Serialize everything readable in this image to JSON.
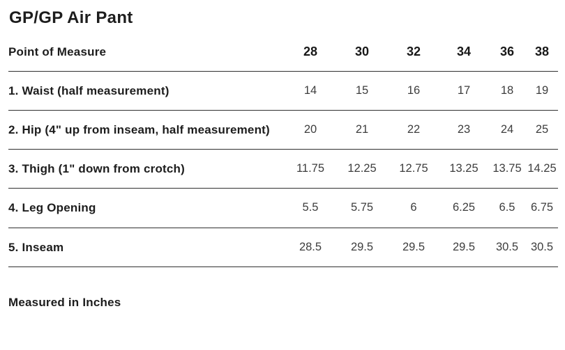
{
  "page": {
    "title": "GP/GP Air Pant",
    "footer_note": "Measured in Inches"
  },
  "table": {
    "header": {
      "label": "Point of Measure",
      "sizes": [
        "28",
        "30",
        "32",
        "34",
        "36",
        "38"
      ]
    },
    "rows": [
      {
        "label": "1. Waist (half measurement)",
        "values": [
          "14",
          "15",
          "16",
          "17",
          "18",
          "19"
        ]
      },
      {
        "label": "2. Hip (4\" up from inseam, half measurement)",
        "values": [
          "20",
          "21",
          "22",
          "23",
          "24",
          "25"
        ]
      },
      {
        "label": "3. Thigh (1\" down from crotch)",
        "values": [
          "11.75",
          "12.25",
          "12.75",
          "13.25",
          "13.75",
          "14.25"
        ]
      },
      {
        "label": "4. Leg Opening",
        "values": [
          "5.5",
          "5.75",
          "6",
          "6.25",
          "6.5",
          "6.75"
        ]
      },
      {
        "label": "5. Inseam",
        "values": [
          "28.5",
          "29.5",
          "29.5",
          "29.5",
          "30.5",
          "30.5"
        ]
      }
    ]
  },
  "chart_data": {
    "type": "table",
    "title": "GP/GP Air Pant",
    "columns": [
      "Point of Measure",
      "28",
      "30",
      "32",
      "34",
      "36",
      "38"
    ],
    "rows": [
      [
        "1. Waist (half measurement)",
        14,
        15,
        16,
        17,
        18,
        19
      ],
      [
        "2. Hip (4\" up from inseam, half measurement)",
        20,
        21,
        22,
        23,
        24,
        25
      ],
      [
        "3. Thigh (1\" down from crotch)",
        11.75,
        12.25,
        12.75,
        13.25,
        13.75,
        14.25
      ],
      [
        "4. Leg Opening",
        5.5,
        5.75,
        6,
        6.25,
        6.5,
        6.75
      ],
      [
        "5. Inseam",
        28.5,
        29.5,
        29.5,
        29.5,
        30.5,
        30.5
      ]
    ],
    "note": "Measured in Inches",
    "units": "inches"
  }
}
